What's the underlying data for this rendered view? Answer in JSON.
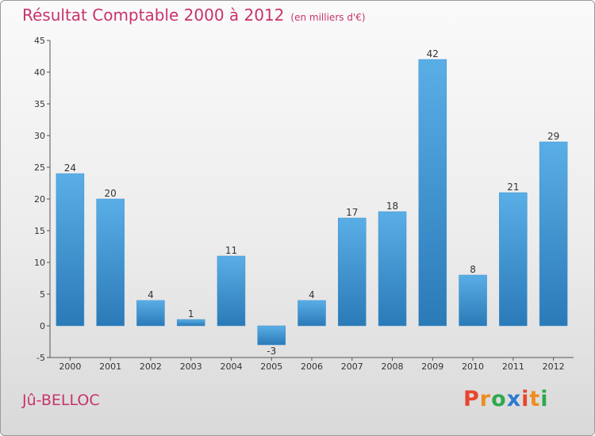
{
  "title": "Résultat Comptable 2000 à 2012",
  "subtitle": "(en milliers d'€)",
  "commune": "Jû-BELLOC",
  "logo_letters": [
    "P",
    "r",
    "o",
    "x",
    "i",
    "t",
    "i"
  ],
  "colors": {
    "title": "#c8336d",
    "bar_top": "#5aaee6",
    "bar_bottom": "#2a7ab8",
    "logo": [
      "#e8462f",
      "#f08c1e",
      "#2fa84f",
      "#2b7bd2",
      "#e8462f",
      "#f08c1e",
      "#2fa84f"
    ]
  },
  "chart_data": {
    "type": "bar",
    "title": "Résultat Comptable 2000 à 2012",
    "subtitle": "(en milliers d'€)",
    "categories": [
      "2000",
      "2001",
      "2002",
      "2003",
      "2004",
      "2005",
      "2006",
      "2007",
      "2008",
      "2009",
      "2010",
      "2011",
      "2012"
    ],
    "values": [
      24,
      20,
      4,
      1,
      11,
      -3,
      4,
      17,
      18,
      42,
      8,
      21,
      29
    ],
    "ylim": [
      -5,
      45
    ],
    "yticks": [
      -5,
      0,
      5,
      10,
      15,
      20,
      25,
      30,
      35,
      40,
      45
    ],
    "xlabel": "",
    "ylabel": "",
    "grid": false,
    "legend": "none"
  }
}
